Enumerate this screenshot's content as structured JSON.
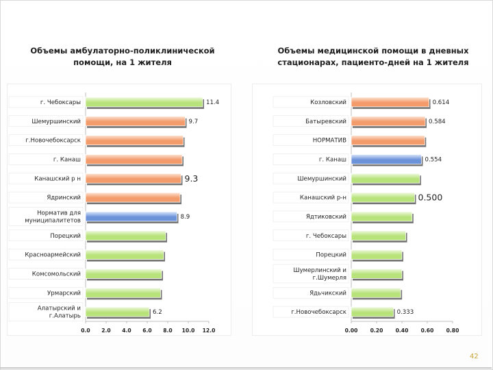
{
  "page": {
    "number": "42"
  },
  "colors": {
    "green": "#b8e27a",
    "green_light": "#eef9de",
    "orange": "#f39b6b",
    "orange_light": "#fde3d3",
    "blue": "#6c92d9",
    "blue_light": "#dbe7fb",
    "label_box": "#ffffff"
  },
  "chart_data": [
    {
      "type": "bar",
      "orientation": "horizontal",
      "title": "Объемы амбулаторно-поликлинической помощи, на 1 жителя",
      "categories": [
        "г. Чебоксары",
        "Шемуршинский",
        "г.Новочебоксарск",
        "г. Канаш",
        "Канашский р н",
        "Ядринский",
        "Норматив для муниципалитетов",
        "Порецкий",
        "Красноармейский",
        "Комсомольский",
        "Урмарский",
        "Алатырский и г.Алатырь"
      ],
      "values": [
        11.4,
        9.7,
        9.5,
        9.4,
        9.3,
        9.2,
        8.9,
        7.8,
        7.6,
        7.4,
        7.3,
        6.2
      ],
      "colors": [
        "green",
        "orange",
        "orange",
        "orange",
        "orange",
        "orange",
        "blue",
        "green",
        "green",
        "green",
        "green",
        "green"
      ],
      "value_labels": [
        {
          "index": 0,
          "text": "11.4"
        },
        {
          "index": 1,
          "text": "9.7"
        },
        {
          "index": 4,
          "text": "9.3"
        },
        {
          "index": 6,
          "text": "8.9"
        },
        {
          "index": 11,
          "text": "6.2"
        }
      ],
      "xlim": [
        0,
        12
      ],
      "xticks": [
        "0.0",
        "2.0",
        "4.0",
        "6.0",
        "8.0",
        "10.0",
        "12.0"
      ]
    },
    {
      "type": "bar",
      "orientation": "horizontal",
      "title": "Объемы медицинской помощи в дневных стационарах, пациенто-дней на 1 жителя",
      "categories": [
        "Козловский",
        "Батыревский",
        "НОРМАТИВ",
        "г. Канаш",
        "Шемуршинский",
        "Канашский р-н",
        "Ядтиковский",
        "г. Чебоксары",
        "Порецкий",
        "Шумерлинский и г.Шумерля",
        "Ядьчикский",
        "г.Новочебоксарск"
      ],
      "values": [
        0.614,
        0.584,
        0.58,
        0.554,
        0.54,
        0.5,
        0.48,
        0.43,
        0.4,
        0.4,
        0.39,
        0.333
      ],
      "colors": [
        "orange",
        "orange",
        "orange",
        "blue",
        "green",
        "green",
        "green",
        "green",
        "green",
        "green",
        "green",
        "green"
      ],
      "value_labels": [
        {
          "index": 0,
          "text": "0.614"
        },
        {
          "index": 1,
          "text": "0.584"
        },
        {
          "index": 3,
          "text": "0.554"
        },
        {
          "index": 5,
          "text": "0.500"
        },
        {
          "index": 11,
          "text": "0.333"
        }
      ],
      "xlim": [
        0,
        0.8
      ],
      "xticks": [
        "0.00",
        "0.20",
        "0.40",
        "0.60",
        "0.80"
      ]
    }
  ]
}
